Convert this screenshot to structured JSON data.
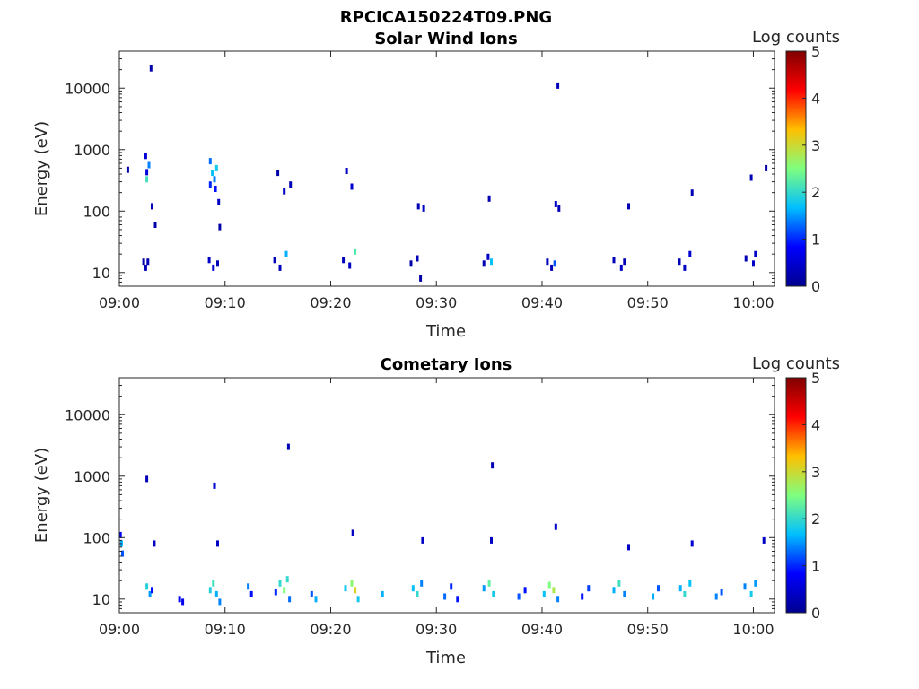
{
  "figure_title": "RPCICA150224T09.PNG",
  "colors": {
    "colormap": [
      "#00008f",
      "#0000ff",
      "#00bfff",
      "#7fff7f",
      "#ffbf00",
      "#ff0000",
      "#800000"
    ],
    "axes": "#262626",
    "background": "#ffffff"
  },
  "chart_data": [
    {
      "type": "heatmap",
      "title": "Solar Wind Ions",
      "xlabel": "Time",
      "ylabel": "Energy (eV)",
      "y_scale": "log",
      "xlim": [
        "09:00",
        "10:02"
      ],
      "ylim": [
        6,
        40000
      ],
      "xticks": [
        "09:00",
        "09:10",
        "09:20",
        "09:30",
        "09:40",
        "09:50",
        "10:00"
      ],
      "yticks": [
        "10",
        "100",
        "1000",
        "10000"
      ],
      "colorbar": {
        "label": "Log counts",
        "range": [
          0,
          5
        ],
        "ticks": [
          "0",
          "1",
          "2",
          "3",
          "4",
          "5"
        ]
      },
      "points": [
        {
          "t": 2.3,
          "e": 15,
          "v": 0.2
        },
        {
          "t": 2.5,
          "e": 12,
          "v": 0.3
        },
        {
          "t": 2.7,
          "e": 15,
          "v": 0.3
        },
        {
          "t": 2.6,
          "e": 430,
          "v": 0.6
        },
        {
          "t": 2.8,
          "e": 560,
          "v": 1.4
        },
        {
          "t": 2.6,
          "e": 330,
          "v": 2.1
        },
        {
          "t": 2.5,
          "e": 790,
          "v": 0.5
        },
        {
          "t": 3.1,
          "e": 120,
          "v": 0.3
        },
        {
          "t": 3.4,
          "e": 60,
          "v": 0.2
        },
        {
          "t": 3.0,
          "e": 21000,
          "v": 0.2
        },
        {
          "t": 0.8,
          "e": 470,
          "v": 0.2
        },
        {
          "t": 8.6,
          "e": 650,
          "v": 1.3
        },
        {
          "t": 8.8,
          "e": 420,
          "v": 1.7
        },
        {
          "t": 9.0,
          "e": 330,
          "v": 1.4
        },
        {
          "t": 9.2,
          "e": 500,
          "v": 1.8
        },
        {
          "t": 9.1,
          "e": 230,
          "v": 0.9
        },
        {
          "t": 9.4,
          "e": 140,
          "v": 0.4
        },
        {
          "t": 8.5,
          "e": 16,
          "v": 0.4
        },
        {
          "t": 8.9,
          "e": 12,
          "v": 0.5
        },
        {
          "t": 9.3,
          "e": 14,
          "v": 0.3
        },
        {
          "t": 8.6,
          "e": 270,
          "v": 1.0
        },
        {
          "t": 9.5,
          "e": 55,
          "v": 0.2
        },
        {
          "t": 14.7,
          "e": 16,
          "v": 0.3
        },
        {
          "t": 15.2,
          "e": 12,
          "v": 0.3
        },
        {
          "t": 15.8,
          "e": 20,
          "v": 1.6
        },
        {
          "t": 15.0,
          "e": 420,
          "v": 0.2
        },
        {
          "t": 16.2,
          "e": 270,
          "v": 0.3
        },
        {
          "t": 15.6,
          "e": 210,
          "v": 0.4
        },
        {
          "t": 21.2,
          "e": 16,
          "v": 0.3
        },
        {
          "t": 21.8,
          "e": 13,
          "v": 0.4
        },
        {
          "t": 22.3,
          "e": 22,
          "v": 2.2
        },
        {
          "t": 22.0,
          "e": 250,
          "v": 0.5
        },
        {
          "t": 21.5,
          "e": 450,
          "v": 0.4
        },
        {
          "t": 27.6,
          "e": 14,
          "v": 0.2
        },
        {
          "t": 28.2,
          "e": 17,
          "v": 0.3
        },
        {
          "t": 28.5,
          "e": 8,
          "v": 0.2
        },
        {
          "t": 28.3,
          "e": 120,
          "v": 0.3
        },
        {
          "t": 28.8,
          "e": 110,
          "v": 0.4
        },
        {
          "t": 34.5,
          "e": 14,
          "v": 0.3
        },
        {
          "t": 34.9,
          "e": 18,
          "v": 0.4
        },
        {
          "t": 35.2,
          "e": 15,
          "v": 1.7
        },
        {
          "t": 35.0,
          "e": 160,
          "v": 0.3
        },
        {
          "t": 40.5,
          "e": 15,
          "v": 0.3
        },
        {
          "t": 40.9,
          "e": 12,
          "v": 0.3
        },
        {
          "t": 41.2,
          "e": 14,
          "v": 1.2
        },
        {
          "t": 41.3,
          "e": 130,
          "v": 0.4
        },
        {
          "t": 41.6,
          "e": 110,
          "v": 0.3
        },
        {
          "t": 41.5,
          "e": 11000,
          "v": 0.3
        },
        {
          "t": 46.8,
          "e": 16,
          "v": 0.3
        },
        {
          "t": 47.5,
          "e": 12,
          "v": 0.4
        },
        {
          "t": 47.8,
          "e": 15,
          "v": 0.3
        },
        {
          "t": 48.2,
          "e": 120,
          "v": 0.3
        },
        {
          "t": 53.0,
          "e": 15,
          "v": 0.3
        },
        {
          "t": 53.5,
          "e": 12,
          "v": 0.4
        },
        {
          "t": 54.0,
          "e": 20,
          "v": 0.5
        },
        {
          "t": 54.2,
          "e": 200,
          "v": 0.3
        },
        {
          "t": 59.3,
          "e": 17,
          "v": 0.3
        },
        {
          "t": 60.0,
          "e": 14,
          "v": 0.4
        },
        {
          "t": 60.2,
          "e": 20,
          "v": 0.4
        },
        {
          "t": 59.8,
          "e": 350,
          "v": 0.3
        },
        {
          "t": 61.2,
          "e": 500,
          "v": 0.2
        }
      ]
    },
    {
      "type": "heatmap",
      "title": "Cometary Ions",
      "xlabel": "Time",
      "ylabel": "Energy (eV)",
      "y_scale": "log",
      "xlim": [
        "09:00",
        "10:02"
      ],
      "ylim": [
        6,
        40000
      ],
      "xticks": [
        "09:00",
        "09:10",
        "09:20",
        "09:30",
        "09:40",
        "09:50",
        "10:00"
      ],
      "yticks": [
        "10",
        "100",
        "1000",
        "10000"
      ],
      "colorbar": {
        "label": "Log counts",
        "range": [
          0,
          5
        ],
        "ticks": [
          "0",
          "1",
          "2",
          "3",
          "4",
          "5"
        ]
      },
      "points": [
        {
          "t": 0.2,
          "e": 80,
          "v": 1.6
        },
        {
          "t": 0.3,
          "e": 55,
          "v": 1.2
        },
        {
          "t": 0.1,
          "e": 110,
          "v": 0.8
        },
        {
          "t": 2.6,
          "e": 16,
          "v": 1.9
        },
        {
          "t": 2.9,
          "e": 12,
          "v": 1.5
        },
        {
          "t": 3.1,
          "e": 14,
          "v": 0.9
        },
        {
          "t": 3.3,
          "e": 80,
          "v": 0.4
        },
        {
          "t": 2.6,
          "e": 900,
          "v": 0.3
        },
        {
          "t": 5.7,
          "e": 10,
          "v": 0.8
        },
        {
          "t": 6.0,
          "e": 9,
          "v": 0.7
        },
        {
          "t": 8.6,
          "e": 14,
          "v": 1.9
        },
        {
          "t": 8.9,
          "e": 18,
          "v": 2.1
        },
        {
          "t": 9.2,
          "e": 12,
          "v": 1.6
        },
        {
          "t": 9.5,
          "e": 9,
          "v": 1.4
        },
        {
          "t": 9.0,
          "e": 700,
          "v": 0.5
        },
        {
          "t": 9.3,
          "e": 80,
          "v": 0.4
        },
        {
          "t": 12.2,
          "e": 16,
          "v": 1.4
        },
        {
          "t": 12.5,
          "e": 12,
          "v": 0.9
        },
        {
          "t": 14.8,
          "e": 13,
          "v": 1.0
        },
        {
          "t": 15.2,
          "e": 18,
          "v": 2.0
        },
        {
          "t": 15.6,
          "e": 14,
          "v": 2.5
        },
        {
          "t": 15.9,
          "e": 21,
          "v": 2.0
        },
        {
          "t": 16.1,
          "e": 10,
          "v": 1.3
        },
        {
          "t": 16.0,
          "e": 3000,
          "v": 0.3
        },
        {
          "t": 18.2,
          "e": 12,
          "v": 1.2
        },
        {
          "t": 18.6,
          "e": 10,
          "v": 1.6
        },
        {
          "t": 21.4,
          "e": 15,
          "v": 1.8
        },
        {
          "t": 22.0,
          "e": 18,
          "v": 2.6
        },
        {
          "t": 22.3,
          "e": 14,
          "v": 3.1
        },
        {
          "t": 22.6,
          "e": 10,
          "v": 1.8
        },
        {
          "t": 22.1,
          "e": 120,
          "v": 0.4
        },
        {
          "t": 24.9,
          "e": 12,
          "v": 1.6
        },
        {
          "t": 27.8,
          "e": 15,
          "v": 1.7
        },
        {
          "t": 28.2,
          "e": 12,
          "v": 2.0
        },
        {
          "t": 28.6,
          "e": 18,
          "v": 1.4
        },
        {
          "t": 28.7,
          "e": 90,
          "v": 0.4
        },
        {
          "t": 30.8,
          "e": 11,
          "v": 1.3
        },
        {
          "t": 31.4,
          "e": 16,
          "v": 1.0
        },
        {
          "t": 32.0,
          "e": 10,
          "v": 0.9
        },
        {
          "t": 34.5,
          "e": 15,
          "v": 1.5
        },
        {
          "t": 35.0,
          "e": 18,
          "v": 2.3
        },
        {
          "t": 35.4,
          "e": 12,
          "v": 1.8
        },
        {
          "t": 35.2,
          "e": 90,
          "v": 0.4
        },
        {
          "t": 35.3,
          "e": 1500,
          "v": 0.3
        },
        {
          "t": 37.8,
          "e": 11,
          "v": 1.2
        },
        {
          "t": 38.4,
          "e": 14,
          "v": 0.9
        },
        {
          "t": 40.2,
          "e": 12,
          "v": 1.7
        },
        {
          "t": 40.7,
          "e": 17,
          "v": 2.5
        },
        {
          "t": 41.1,
          "e": 14,
          "v": 2.8
        },
        {
          "t": 41.5,
          "e": 10,
          "v": 1.4
        },
        {
          "t": 41.3,
          "e": 150,
          "v": 0.4
        },
        {
          "t": 43.8,
          "e": 11,
          "v": 0.9
        },
        {
          "t": 44.4,
          "e": 15,
          "v": 1.1
        },
        {
          "t": 46.8,
          "e": 14,
          "v": 1.6
        },
        {
          "t": 47.3,
          "e": 18,
          "v": 2.1
        },
        {
          "t": 47.8,
          "e": 12,
          "v": 1.4
        },
        {
          "t": 48.2,
          "e": 70,
          "v": 0.4
        },
        {
          "t": 50.5,
          "e": 11,
          "v": 1.6
        },
        {
          "t": 51.0,
          "e": 15,
          "v": 1.2
        },
        {
          "t": 53.1,
          "e": 15,
          "v": 1.6
        },
        {
          "t": 53.5,
          "e": 12,
          "v": 2.0
        },
        {
          "t": 54.0,
          "e": 18,
          "v": 1.7
        },
        {
          "t": 54.2,
          "e": 80,
          "v": 0.5
        },
        {
          "t": 56.5,
          "e": 11,
          "v": 1.4
        },
        {
          "t": 57.0,
          "e": 13,
          "v": 1.2
        },
        {
          "t": 59.2,
          "e": 16,
          "v": 1.4
        },
        {
          "t": 59.8,
          "e": 12,
          "v": 1.8
        },
        {
          "t": 60.2,
          "e": 18,
          "v": 1.5
        },
        {
          "t": 61.0,
          "e": 90,
          "v": 0.4
        }
      ]
    }
  ]
}
